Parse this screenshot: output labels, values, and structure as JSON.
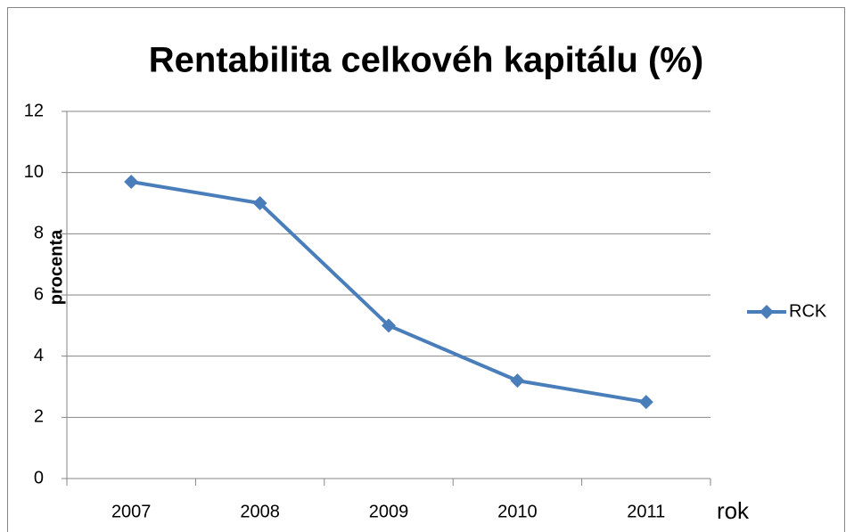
{
  "chart_data": {
    "type": "line",
    "title": "Rentabilita celkovéh kapitálu (%)",
    "x_label": "rok",
    "y_label": "procenta",
    "categories": [
      "2007",
      "2008",
      "2009",
      "2010",
      "2011"
    ],
    "series": [
      {
        "name": "RCK",
        "color": "#4a7ebb",
        "values": [
          9.7,
          9.0,
          5.0,
          3.2,
          2.5
        ]
      }
    ],
    "ylim": [
      0,
      12
    ],
    "yticks": [
      0,
      2,
      4,
      6,
      8,
      10,
      12
    ],
    "grid": true,
    "legend": "right"
  }
}
